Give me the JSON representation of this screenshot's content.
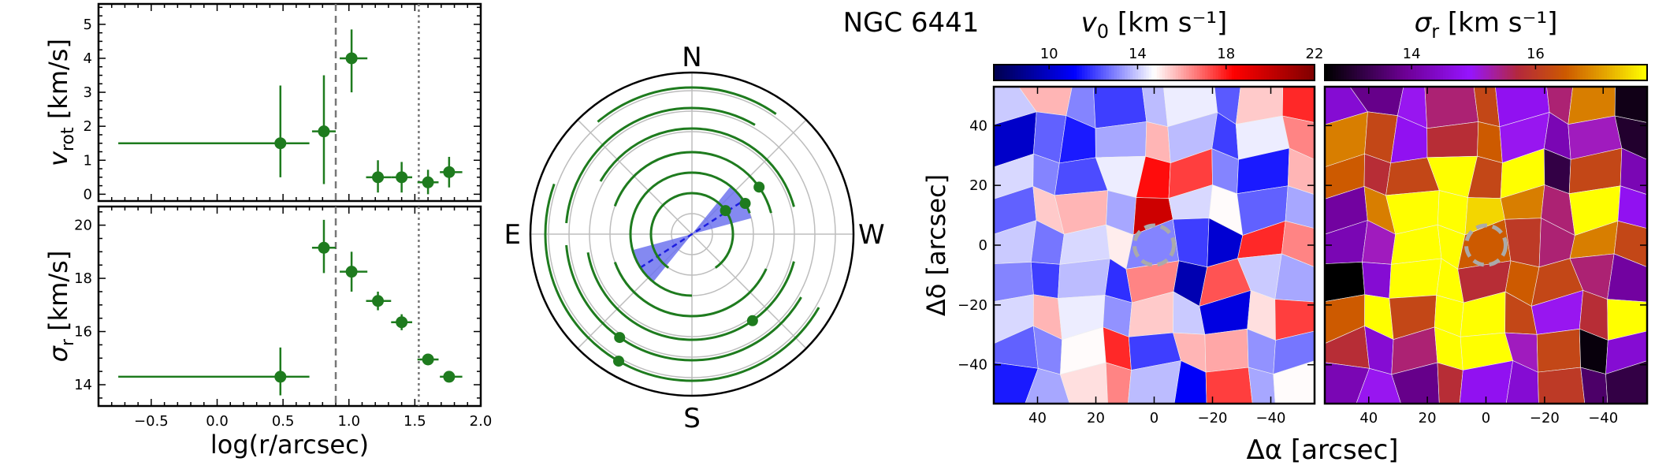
{
  "title": "NGC 6441",
  "colors": {
    "marker": "#1e7b1e",
    "wedge": "#6f74ee",
    "pa_line": "#1d1de0",
    "grid": "#bdbdbd",
    "dashed_ring": "#aaaaaa"
  },
  "chart_data": [
    {
      "type": "scatter",
      "name": "rotation-profile",
      "ylabel_main": "v",
      "ylabel_sub": "rot",
      "ylabel_unit": "[km/s]",
      "xlim": [
        -0.9,
        2.0
      ],
      "ylim": [
        -0.2,
        5.6
      ],
      "yticks": [
        0,
        1,
        2,
        3,
        4,
        5
      ],
      "points": [
        {
          "x": 0.48,
          "y": 1.5,
          "xlo": -0.75,
          "xhi": 0.7,
          "ylo": 0.5,
          "yhi": 3.2
        },
        {
          "x": 0.81,
          "y": 1.85,
          "xlo": 0.72,
          "xhi": 0.9,
          "ylo": 0.3,
          "yhi": 3.5
        },
        {
          "x": 1.02,
          "y": 4.0,
          "xlo": 0.93,
          "xhi": 1.14,
          "ylo": 3.0,
          "yhi": 4.85
        },
        {
          "x": 1.22,
          "y": 0.5,
          "xlo": 1.13,
          "xhi": 1.32,
          "ylo": 0.05,
          "yhi": 1.0
        },
        {
          "x": 1.4,
          "y": 0.5,
          "xlo": 1.32,
          "xhi": 1.48,
          "ylo": 0.05,
          "yhi": 0.95
        },
        {
          "x": 1.6,
          "y": 0.35,
          "xlo": 1.52,
          "xhi": 1.68,
          "ylo": 0.0,
          "yhi": 0.72
        },
        {
          "x": 1.76,
          "y": 0.65,
          "xlo": 1.69,
          "xhi": 1.86,
          "ylo": 0.2,
          "yhi": 1.1
        }
      ],
      "vlines": [
        {
          "x": 0.9,
          "style": "dashed"
        },
        {
          "x": 1.53,
          "style": "dotted"
        }
      ]
    },
    {
      "type": "scatter",
      "name": "dispersion-profile",
      "ylabel_main": "σ",
      "ylabel_sub": "r",
      "ylabel_unit": "[km/s]",
      "xlabel": "log(r/arcsec)",
      "xlim": [
        -0.9,
        2.0
      ],
      "ylim": [
        13.2,
        20.7
      ],
      "xticks": [
        -0.5,
        0.0,
        0.5,
        1.0,
        1.5,
        2.0
      ],
      "xticklabels": [
        "−0.5",
        "0.0",
        "0.5",
        "1.0",
        "1.5",
        "2.0"
      ],
      "yticks": [
        14,
        16,
        18,
        20
      ],
      "points": [
        {
          "x": 0.48,
          "y": 14.3,
          "xlo": -0.75,
          "xhi": 0.7,
          "ylo": 13.6,
          "yhi": 15.4
        },
        {
          "x": 0.81,
          "y": 19.15,
          "xlo": 0.72,
          "xhi": 0.9,
          "ylo": 18.2,
          "yhi": 20.2
        },
        {
          "x": 1.02,
          "y": 18.25,
          "xlo": 0.93,
          "xhi": 1.14,
          "ylo": 17.5,
          "yhi": 19.0
        },
        {
          "x": 1.22,
          "y": 17.15,
          "xlo": 1.13,
          "xhi": 1.32,
          "ylo": 16.8,
          "yhi": 17.5
        },
        {
          "x": 1.4,
          "y": 16.35,
          "xlo": 1.32,
          "xhi": 1.48,
          "ylo": 16.05,
          "yhi": 16.65
        },
        {
          "x": 1.6,
          "y": 14.95,
          "xlo": 1.52,
          "xhi": 1.68,
          "ylo": 14.75,
          "yhi": 15.15
        },
        {
          "x": 1.76,
          "y": 14.3,
          "xlo": 1.69,
          "xhi": 1.86,
          "ylo": 14.15,
          "yhi": 14.45
        }
      ],
      "vlines": [
        {
          "x": 0.9,
          "style": "dashed"
        },
        {
          "x": 1.53,
          "style": "dotted"
        }
      ]
    },
    {
      "type": "polar",
      "name": "position-angle-compass",
      "labels": {
        "N": "N",
        "S": "S",
        "E": "E",
        "W": "W"
      },
      "rings": 7,
      "arcs": [
        {
          "ring": 2,
          "start": -55,
          "end": 235,
          "marker": 35
        },
        {
          "ring": 3,
          "start": 20,
          "end": 270,
          "marker": 30
        },
        {
          "ring": 4,
          "start": 15,
          "end": 160,
          "marker": 35
        },
        {
          "ring": 4,
          "start": 200,
          "end": 335,
          "marker": null
        },
        {
          "ring": 5,
          "start": 15,
          "end": 150,
          "marker": 305
        },
        {
          "ring": 5,
          "start": 190,
          "end": 345,
          "marker": null
        },
        {
          "ring": 6,
          "start": 60,
          "end": 175,
          "marker": 235
        },
        {
          "ring": 6,
          "start": 185,
          "end": 330,
          "marker": null
        },
        {
          "ring": 7,
          "start": 55,
          "end": 130,
          "marker": 240
        },
        {
          "ring": 7,
          "start": 160,
          "end": 330,
          "marker": null
        }
      ],
      "pa_wedge": {
        "center": 33,
        "halfwidth": 18,
        "radius_ring": 3
      },
      "pa_line_angle": 33
    },
    {
      "type": "heatmap",
      "name": "velocity-map",
      "colorbar_label_main": "v",
      "colorbar_label_sub": "0",
      "colorbar_label_unit": "[km s⁻¹]",
      "colorbar_range": [
        7.5,
        22
      ],
      "colorbar_ticks": [
        10,
        14,
        18,
        22
      ],
      "colormap": "seismic",
      "ylabel": "Δδ [arcsec]",
      "xlim": [
        55,
        -55
      ],
      "ylim": [
        -53,
        53
      ],
      "xticks": [
        40,
        20,
        0,
        -20,
        -40
      ],
      "xticklabels": [
        "40",
        "20",
        "0",
        "−20",
        "−40"
      ],
      "yticks": [
        40,
        20,
        0,
        -20,
        -40
      ],
      "yticklabels": [
        "40",
        "20",
        "0",
        "−20",
        "−40"
      ],
      "values": [
        [
          14.0,
          15.8,
          13.0,
          12.0,
          13.8,
          14.5,
          12.4,
          15.5,
          17.8
        ],
        [
          10.0,
          12.5,
          11.5,
          13.5,
          15.8,
          13.8,
          12.0,
          14.5,
          16.5
        ],
        [
          14.2,
          13.0,
          12.2,
          14.5,
          18.2,
          17.5,
          13.0,
          11.5,
          15.8
        ],
        [
          12.5,
          15.5,
          15.8,
          13.5,
          19.8,
          14.2,
          14.8,
          12.5,
          13.5
        ],
        [
          14.0,
          12.8,
          14.2,
          15.0,
          13.0,
          12.0,
          10.2,
          17.8,
          16.5
        ],
        [
          13.0,
          12.0,
          13.8,
          11.8,
          16.5,
          9.5,
          17.2,
          14.0,
          13.5
        ],
        [
          14.2,
          15.8,
          14.5,
          13.2,
          15.5,
          14.0,
          10.5,
          15.2,
          17.5
        ],
        [
          12.5,
          13.0,
          14.8,
          17.8,
          12.0,
          15.8,
          16.0,
          13.2,
          12.8
        ],
        [
          11.5,
          13.5,
          15.2,
          16.5,
          13.8,
          11.0,
          17.5,
          13.5,
          14.8
        ]
      ]
    },
    {
      "type": "heatmap",
      "name": "dispersion-map",
      "colorbar_label_main": "σ",
      "colorbar_label_sub": "r",
      "colorbar_label_unit": "[km s⁻¹]",
      "colorbar_range": [
        12.6,
        17.8
      ],
      "colorbar_ticks": [
        14,
        16
      ],
      "colormap": "gnuplot",
      "xlabel": "Δα [arcsec]",
      "xlim": [
        55,
        -55
      ],
      "ylim": [
        -53,
        53
      ],
      "xticks": [
        40,
        20,
        0,
        -20,
        -40
      ],
      "xticklabels": [
        "40",
        "20",
        "0",
        "−20",
        "−40"
      ],
      "values": [
        [
          14.5,
          13.8,
          15.0,
          15.5,
          16.2,
          14.8,
          15.5,
          16.8,
          12.8
        ],
        [
          16.8,
          16.2,
          14.8,
          15.8,
          16.5,
          15.0,
          14.2,
          15.2,
          13.0
        ],
        [
          16.5,
          15.8,
          16.2,
          17.8,
          16.2,
          17.8,
          13.2,
          16.2,
          14.2
        ],
        [
          14.0,
          16.8,
          17.8,
          17.8,
          17.5,
          16.8,
          15.5,
          17.8,
          14.8
        ],
        [
          14.2,
          15.2,
          17.8,
          17.8,
          16.5,
          16.0,
          15.5,
          16.8,
          16.2
        ],
        [
          12.6,
          14.5,
          17.8,
          17.8,
          15.8,
          16.5,
          16.2,
          15.5,
          14.0
        ],
        [
          16.5,
          17.8,
          16.2,
          17.8,
          17.8,
          16.2,
          15.0,
          15.8,
          17.8
        ],
        [
          15.8,
          14.5,
          15.5,
          17.8,
          17.8,
          15.2,
          16.2,
          12.7,
          14.5
        ],
        [
          14.2,
          15.0,
          13.8,
          15.8,
          14.8,
          14.5,
          16.0,
          13.5,
          13.2
        ]
      ]
    }
  ]
}
